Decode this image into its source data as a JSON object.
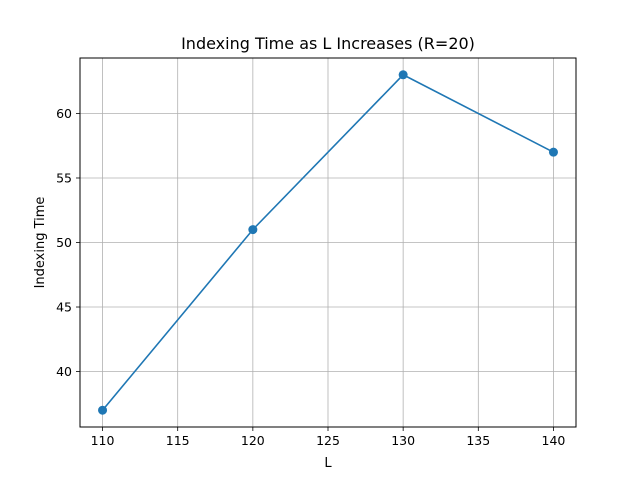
{
  "chart_data": {
    "type": "line",
    "title": "Indexing Time as L Increases (R=20)",
    "xlabel": "L",
    "ylabel": "Indexing Time",
    "x": [
      110,
      120,
      130,
      140
    ],
    "series": [
      {
        "values": [
          37,
          51,
          63,
          57
        ],
        "color": "#1f77b4",
        "marker": "circle"
      }
    ],
    "xlim": [
      108.5,
      141.5
    ],
    "ylim": [
      35.7,
      64.3
    ],
    "xticks": [
      110,
      115,
      120,
      125,
      130,
      135,
      140
    ],
    "yticks": [
      40,
      45,
      50,
      55,
      60
    ],
    "grid": true
  }
}
